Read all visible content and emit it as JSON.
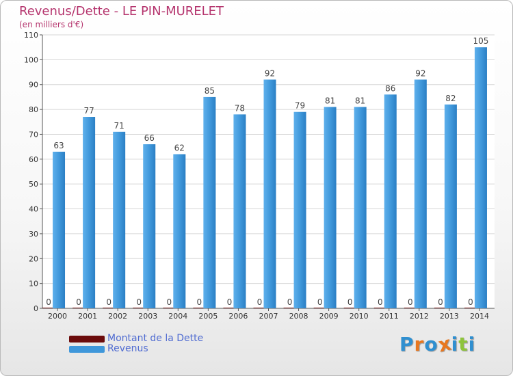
{
  "header": {
    "title": "Revenus/Dette - LE PIN-MURELET",
    "subtitle": "(en milliers d'€)"
  },
  "legend": {
    "items": [
      {
        "label": "Montant de la Dette",
        "color": "#6b0b0b"
      },
      {
        "label": "Revenus",
        "color": "#3f97da"
      }
    ]
  },
  "logo": {
    "text": "Proxiti",
    "letter_colors": [
      "#2f8fd0",
      "#e8771f",
      "#2f8fd0",
      "#e8771f",
      "#2f8fd0",
      "#8ec43b",
      "#2f8fd0"
    ]
  },
  "chart_data": {
    "type": "bar",
    "title": "Revenus/Dette - LE PIN-MURELET",
    "subtitle": "(en milliers d'€)",
    "categories": [
      "2000",
      "2001",
      "2002",
      "2003",
      "2004",
      "2005",
      "2006",
      "2007",
      "2008",
      "2009",
      "2010",
      "2011",
      "2012",
      "2013",
      "2014"
    ],
    "series": [
      {
        "name": "Montant de la Dette",
        "color": "#6b0b0b",
        "values": [
          0,
          0,
          0,
          0,
          0,
          0,
          0,
          0,
          0,
          0,
          0,
          0,
          0,
          0,
          0
        ]
      },
      {
        "name": "Revenus",
        "color": "#3f97da",
        "values": [
          63,
          77,
          71,
          66,
          62,
          85,
          78,
          92,
          79,
          81,
          81,
          86,
          92,
          82,
          105
        ]
      }
    ],
    "yticks": [
      0,
      10,
      20,
      30,
      40,
      50,
      60,
      70,
      80,
      90,
      100,
      110
    ],
    "ylim": [
      0,
      110
    ],
    "grid": true,
    "legend_position": "bottom-left"
  }
}
